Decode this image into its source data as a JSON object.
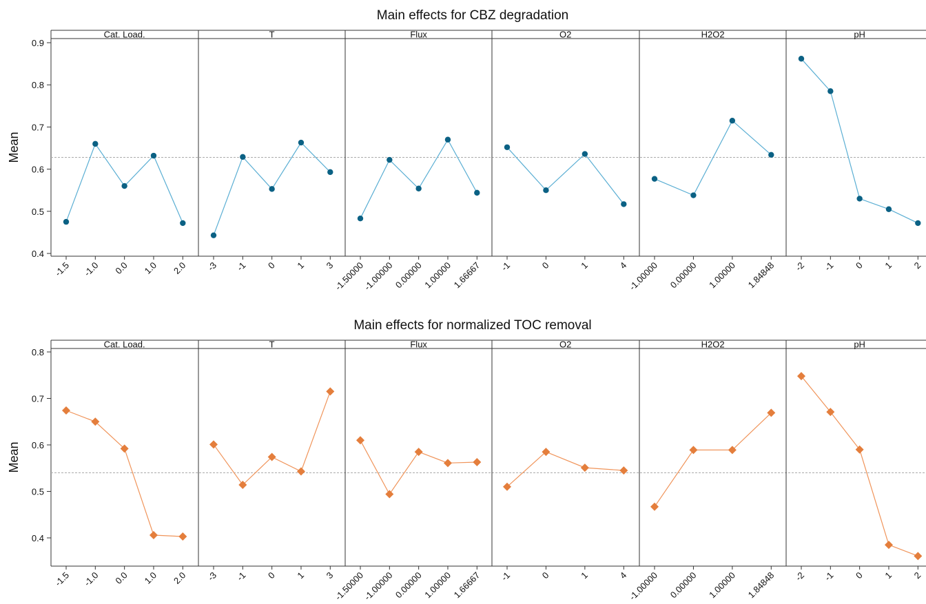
{
  "chart_data": [
    {
      "type": "line",
      "title": "Main effects for CBZ degradation",
      "ylabel": "Mean",
      "ylim": [
        0.4,
        0.9
      ],
      "yticks": [
        "0.4",
        "0.5",
        "0.6",
        "0.7",
        "0.8",
        "0.9"
      ],
      "mean_line": 0.628,
      "line_color": "#5aaed3",
      "marker_color": "#0b6184",
      "marker": "circle",
      "panels": [
        {
          "name": "Cat. Load.",
          "x": [
            "-1.5",
            "-1.0",
            "0.0",
            "1.0",
            "2.0"
          ],
          "y": [
            0.475,
            0.66,
            0.56,
            0.632,
            0.472
          ]
        },
        {
          "name": "T",
          "x": [
            "-3",
            "-1",
            "0",
            "1",
            "3"
          ],
          "y": [
            0.443,
            0.629,
            0.553,
            0.663,
            0.593
          ]
        },
        {
          "name": "Flux",
          "x": [
            "-1.50000",
            "-1.00000",
            "0.00000",
            "1.00000",
            "1.66667"
          ],
          "y": [
            0.483,
            0.622,
            0.554,
            0.67,
            0.544
          ]
        },
        {
          "name": "O2",
          "x": [
            "-1",
            "0",
            "1",
            "4"
          ],
          "y": [
            0.652,
            0.55,
            0.636,
            0.517
          ]
        },
        {
          "name": "H2O2",
          "x": [
            "-1.00000",
            "0.00000",
            "1.00000",
            "1.84848"
          ],
          "y": [
            0.577,
            0.538,
            0.715,
            0.634
          ]
        },
        {
          "name": "pH",
          "x": [
            "-2",
            "-1",
            "0",
            "1",
            "2"
          ],
          "y": [
            0.862,
            0.785,
            0.53,
            0.505,
            0.472
          ]
        }
      ]
    },
    {
      "type": "line",
      "title": "Main effects for normalized TOC removal",
      "ylabel": "Mean",
      "ylim": [
        0.4,
        0.8
      ],
      "yticks": [
        "0.4",
        "0.5",
        "0.6",
        "0.7",
        "0.8"
      ],
      "mean_line": 0.54,
      "line_color": "#f0945a",
      "marker_color": "#e47e3c",
      "marker": "diamond",
      "panels": [
        {
          "name": "Cat. Load.",
          "x": [
            "-1.5",
            "-1.0",
            "0.0",
            "1.0",
            "2.0"
          ],
          "y": [
            0.674,
            0.65,
            0.592,
            0.406,
            0.403
          ]
        },
        {
          "name": "T",
          "x": [
            "-3",
            "-1",
            "0",
            "1",
            "3"
          ],
          "y": [
            0.601,
            0.514,
            0.574,
            0.543,
            0.715
          ]
        },
        {
          "name": "Flux",
          "x": [
            "-1.50000",
            "-1.00000",
            "0.00000",
            "1.00000",
            "1.66667"
          ],
          "y": [
            0.61,
            0.494,
            0.585,
            0.561,
            0.563
          ]
        },
        {
          "name": "O2",
          "x": [
            "-1",
            "0",
            "1",
            "4"
          ],
          "y": [
            0.51,
            0.585,
            0.551,
            0.545
          ]
        },
        {
          "name": "H2O2",
          "x": [
            "-1.00000",
            "0.00000",
            "1.00000",
            "1.84848"
          ],
          "y": [
            0.467,
            0.589,
            0.589,
            0.669
          ]
        },
        {
          "name": "pH",
          "x": [
            "-2",
            "-1",
            "0",
            "1",
            "2"
          ],
          "y": [
            0.748,
            0.671,
            0.59,
            0.385,
            0.361
          ]
        }
      ]
    }
  ]
}
